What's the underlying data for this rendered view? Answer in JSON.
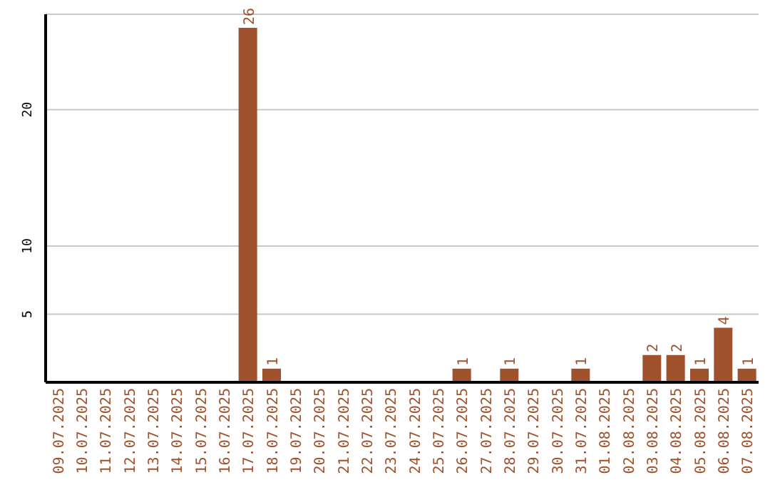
{
  "chart_data": {
    "type": "bar",
    "categories": [
      "09.07.2025",
      "10.07.2025",
      "11.07.2025",
      "12.07.2025",
      "13.07.2025",
      "14.07.2025",
      "15.07.2025",
      "16.07.2025",
      "17.07.2025",
      "18.07.2025",
      "19.07.2025",
      "20.07.2025",
      "21.07.2025",
      "22.07.2025",
      "23.07.2025",
      "24.07.2025",
      "25.07.2025",
      "26.07.2025",
      "27.07.2025",
      "28.07.2025",
      "29.07.2025",
      "30.07.2025",
      "31.07.2025",
      "01.08.2025",
      "02.08.2025",
      "03.08.2025",
      "04.08.2025",
      "05.08.2025",
      "06.08.2025",
      "07.08.2025"
    ],
    "values": [
      0,
      0,
      0,
      0,
      0,
      0,
      0,
      0,
      26,
      1,
      0,
      0,
      0,
      0,
      0,
      0,
      0,
      1,
      0,
      1,
      0,
      0,
      1,
      0,
      0,
      2,
      2,
      1,
      4,
      1
    ],
    "value_labels": [
      null,
      null,
      null,
      null,
      null,
      null,
      null,
      null,
      "26",
      "1",
      null,
      null,
      null,
      null,
      null,
      null,
      null,
      "1",
      null,
      "1",
      null,
      null,
      "1",
      null,
      null,
      "2",
      "2",
      "1",
      "4",
      "1"
    ],
    "color": "#a0522d",
    "ylim": [
      0,
      27
    ],
    "yticks": [
      5,
      10,
      20
    ],
    "grid": "y"
  }
}
